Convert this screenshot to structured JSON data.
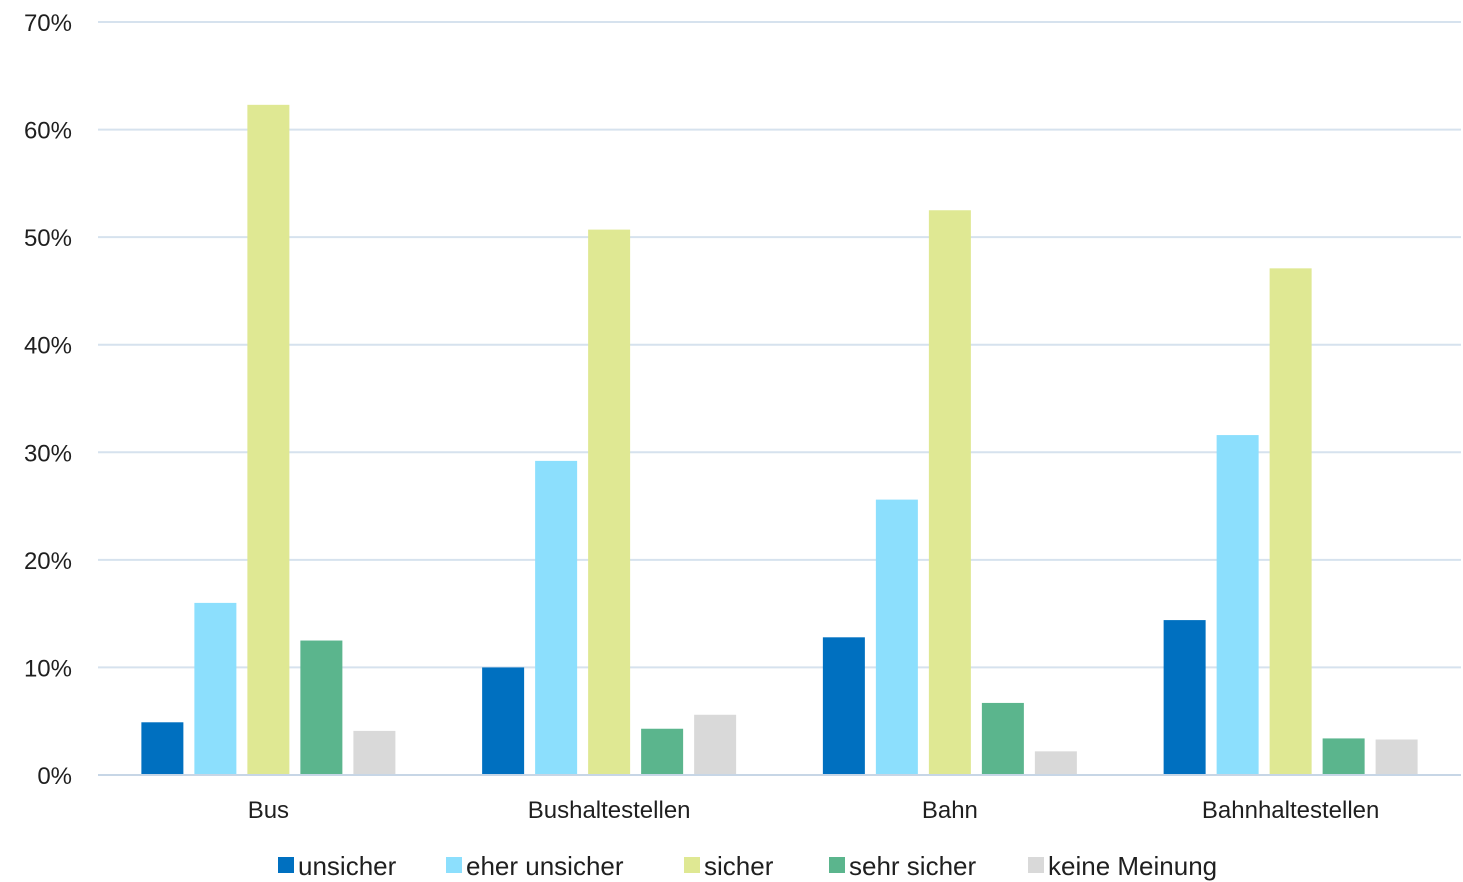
{
  "chart_data": {
    "type": "bar",
    "title": "",
    "xlabel": "",
    "ylabel": "",
    "ylim": [
      0,
      70
    ],
    "y_ticks": [
      0,
      10,
      20,
      30,
      40,
      50,
      60,
      70
    ],
    "y_tick_format": "{v}%",
    "y_tick_labels": [
      "0%",
      "10%",
      "20%",
      "30%",
      "40%",
      "50%",
      "60%",
      "70%"
    ],
    "grid": true,
    "legend_position": "bottom",
    "categories": [
      "Bus",
      "Bushaltestellen",
      "Bahn",
      "Bahnhaltestellen"
    ],
    "series": [
      {
        "name": "unsicher",
        "color": "#0070c0",
        "values": [
          4.9,
          10.0,
          12.8,
          14.4
        ]
      },
      {
        "name": "eher unsicher",
        "color": "#8cdffd",
        "values": [
          16.0,
          29.2,
          25.6,
          31.6
        ]
      },
      {
        "name": "sicher",
        "color": "#dfe893",
        "values": [
          62.3,
          50.7,
          52.5,
          47.1
        ]
      },
      {
        "name": "sehr sicher",
        "color": "#5bb58d",
        "values": [
          12.5,
          4.3,
          6.7,
          3.4
        ]
      },
      {
        "name": "keine Meinung",
        "color": "#d9d9d9",
        "values": [
          4.1,
          5.6,
          2.2,
          3.3
        ]
      }
    ]
  }
}
